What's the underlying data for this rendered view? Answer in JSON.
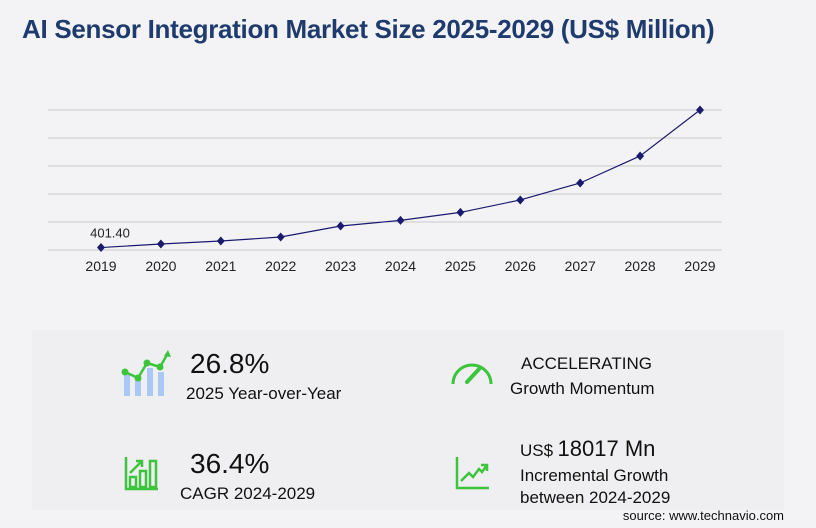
{
  "title": "AI Sensor Integration Market Size 2025-2029 (US$ Million)",
  "chart_data": {
    "type": "line",
    "categories": [
      "2019",
      "2020",
      "2021",
      "2022",
      "2023",
      "2024",
      "2025",
      "2026",
      "2027",
      "2028",
      "2029"
    ],
    "values": [
      401.4,
      980,
      1470,
      2120,
      3920,
      4841,
      6138,
      8170,
      10940,
      15350,
      22858
    ],
    "data_labels": {
      "0": "401.40"
    },
    "ylim": [
      0,
      22858
    ],
    "grid": true,
    "line_color": "#1a1a6e"
  },
  "stats": {
    "yoy_value": "26.8%",
    "yoy_label": "2025 Year-over-Year",
    "momentum_value": "ACCELERATING",
    "momentum_label": "Growth Momentum",
    "cagr_value": "36.4%",
    "cagr_label": "CAGR 2024-2029",
    "incr_currency": "US$",
    "incr_value": "18017 Mn",
    "incr_label1": "Incremental Growth",
    "incr_label2": "between 2024-2029"
  },
  "source": "source: www.technavio.com",
  "accent_color": "#2ec52e"
}
